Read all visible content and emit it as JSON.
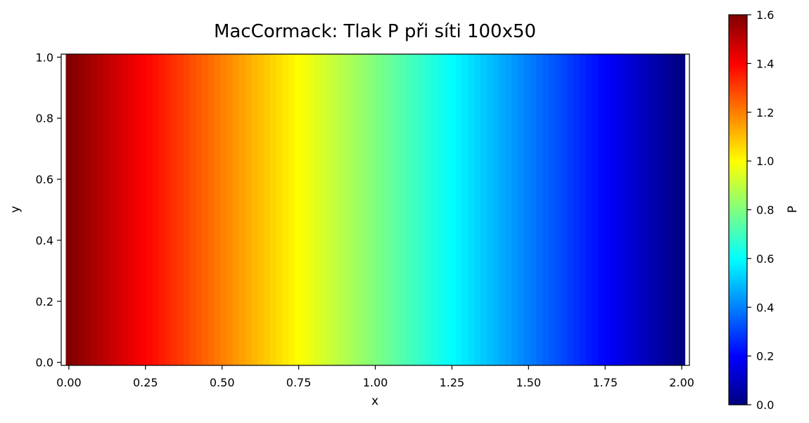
{
  "chart_data": {
    "type": "heatmap",
    "title": "MacCormack: Tlak P při síti 100x50",
    "xlabel": "x",
    "ylabel": "y",
    "colorbar_label": "P",
    "colormap": "jet",
    "xlim": [
      -0.025,
      2.025
    ],
    "ylim": [
      -0.01,
      1.01
    ],
    "color_range": [
      0.0,
      1.6
    ],
    "grid": false,
    "x_ticks": [
      0.0,
      0.25,
      0.5,
      0.75,
      1.0,
      1.25,
      1.5,
      1.75,
      2.0
    ],
    "x_tick_labels": [
      "0.00",
      "0.25",
      "0.50",
      "0.75",
      "1.00",
      "1.25",
      "1.50",
      "1.75",
      "2.00"
    ],
    "y_ticks": [
      0.0,
      0.2,
      0.4,
      0.6,
      0.8,
      1.0
    ],
    "y_tick_labels": [
      "0.0",
      "0.2",
      "0.4",
      "0.6",
      "0.8",
      "1.0"
    ],
    "colorbar_ticks": [
      0.0,
      0.2,
      0.4,
      0.6,
      0.8,
      1.0,
      1.2,
      1.4,
      1.6
    ],
    "colorbar_tick_labels": [
      "0.0",
      "0.2",
      "0.4",
      "0.6",
      "0.8",
      "1.0",
      "1.2",
      "1.4",
      "1.6"
    ],
    "grid_size": [
      100,
      50
    ],
    "field": {
      "description_of_values": "P varies along x only, uniform in y",
      "x": [
        0.0,
        0.1,
        0.2,
        0.3,
        0.4,
        0.5,
        0.6,
        0.7,
        0.8,
        0.9,
        1.0,
        1.1,
        1.2,
        1.3,
        1.4,
        1.5,
        1.6,
        1.7,
        1.8,
        1.9,
        2.0
      ],
      "P": [
        1.6,
        1.52,
        1.44,
        1.36,
        1.28,
        1.2,
        1.12,
        1.04,
        0.96,
        0.88,
        0.8,
        0.72,
        0.64,
        0.56,
        0.48,
        0.4,
        0.32,
        0.24,
        0.16,
        0.08,
        0.0
      ]
    }
  }
}
